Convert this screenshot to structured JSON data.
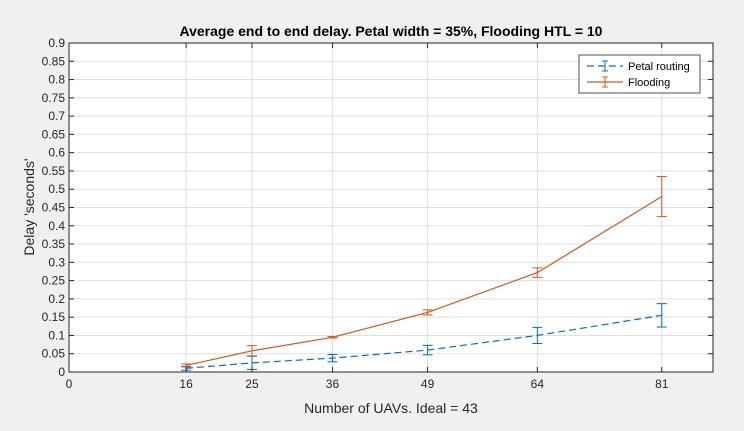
{
  "chart_data": {
    "type": "line",
    "title": "Average end to end delay. Petal width = 35%, Flooding HTL = 10",
    "xlabel": "Number of UAVs. Ideal = 43",
    "ylabel": "Delay 'seconds'",
    "xlim": [
      0,
      88
    ],
    "ylim": [
      0,
      0.9
    ],
    "xticks": [
      0,
      16,
      25,
      36,
      49,
      64,
      81
    ],
    "yticks": [
      0,
      0.05,
      0.1,
      0.15,
      0.2,
      0.25,
      0.3,
      0.35,
      0.4,
      0.45,
      0.5,
      0.55,
      0.6,
      0.65,
      0.7,
      0.75,
      0.8,
      0.85,
      0.9
    ],
    "grid": true,
    "legend_position": "top-right",
    "x": [
      16,
      25,
      36,
      49,
      64,
      81
    ],
    "series": [
      {
        "name": "Petal routing",
        "style": "dashed",
        "color": "#0072bd",
        "values": [
          0.01,
          0.025,
          0.038,
          0.06,
          0.1,
          0.155
        ],
        "error": [
          0.005,
          0.018,
          0.01,
          0.013,
          0.022,
          0.032
        ]
      },
      {
        "name": "Flooding",
        "style": "solid",
        "color": "#d95319",
        "values": [
          0.018,
          0.058,
          0.095,
          0.163,
          0.272,
          0.48
        ],
        "error": [
          0.004,
          0.014,
          0.002,
          0.007,
          0.013,
          0.055
        ]
      }
    ]
  }
}
